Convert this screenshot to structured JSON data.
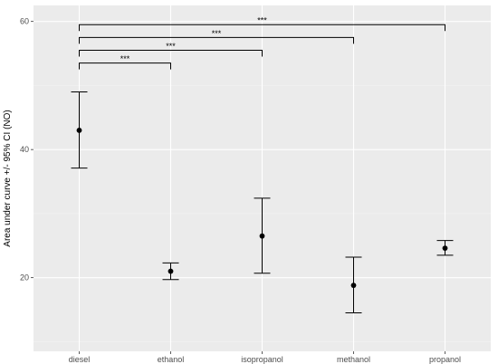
{
  "colors": {
    "panel": "#ebebeb",
    "gridMajor": "#ffffff",
    "gridMinor": "#f4f4f4",
    "ink": "#000000",
    "tickText": "#4d4d4d"
  },
  "chart_data": {
    "type": "scatter",
    "subtype": "point-with-error-bars",
    "title": "",
    "xlabel": "",
    "ylabel": "Area under curve +/- 95% CI (NO)",
    "categories": [
      "diesel",
      "ethanol",
      "isopropanol",
      "methanol",
      "propanol"
    ],
    "values": [
      43.0,
      21.0,
      26.5,
      18.8,
      24.6
    ],
    "ci_lower": [
      37.1,
      19.7,
      20.7,
      14.5,
      23.5
    ],
    "ci_upper": [
      49.0,
      22.3,
      32.4,
      23.2,
      25.8
    ],
    "ylim": [
      8.5,
      62.5
    ],
    "yticks": [
      20,
      40,
      60
    ],
    "grid": true,
    "legend": "none",
    "significance": [
      {
        "from": "diesel",
        "to": "ethanol",
        "label": "***",
        "y": 53.5
      },
      {
        "from": "diesel",
        "to": "isopropanol",
        "label": "***",
        "y": 55.5
      },
      {
        "from": "diesel",
        "to": "methanol",
        "label": "***",
        "y": 57.5
      },
      {
        "from": "diesel",
        "to": "propanol",
        "label": "***",
        "y": 59.5
      }
    ]
  }
}
